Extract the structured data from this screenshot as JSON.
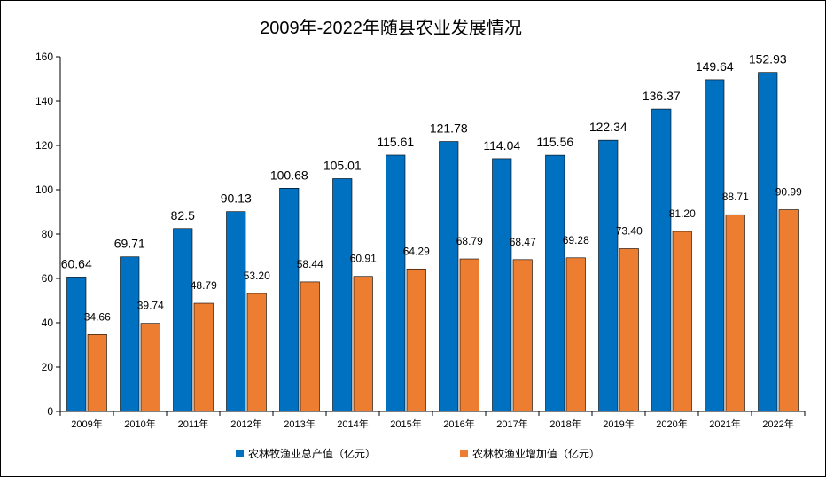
{
  "chart_data": {
    "type": "bar",
    "title": "2009年-2022年随县农业发展情况",
    "categories": [
      "2009年",
      "2010年",
      "2011年",
      "2012年",
      "2013年",
      "2014年",
      "2015年",
      "2016年",
      "2017年",
      "2018年",
      "2019年",
      "2020年",
      "2021年",
      "2022年"
    ],
    "series": [
      {
        "name": "农林牧渔业总产值（亿元）",
        "color": "#0070C0",
        "values": [
          60.64,
          69.71,
          82.5,
          90.13,
          100.68,
          105.01,
          115.61,
          121.78,
          114.04,
          115.56,
          122.34,
          136.37,
          149.64,
          152.93
        ],
        "labels": [
          "60.64",
          "69.71",
          "82.5",
          "90.13",
          "100.68",
          "105.01",
          "115.61",
          "121.78",
          "114.04",
          "115.56",
          "122.34",
          "136.37",
          "149.64",
          "152.93"
        ]
      },
      {
        "name": "农林牧渔业增加值（亿元）",
        "color": "#ED7D31",
        "values": [
          34.66,
          39.74,
          48.79,
          53.2,
          58.44,
          60.91,
          64.29,
          68.79,
          68.47,
          69.28,
          73.4,
          81.2,
          88.71,
          90.99
        ],
        "labels": [
          "34.66",
          "39.74",
          "48.79",
          "53.20",
          "58.44",
          "60.91",
          "64.29",
          "68.79",
          "68.47",
          "69.28",
          "73.40",
          "81.20",
          "88.71",
          "90.99"
        ]
      }
    ],
    "ylim": [
      0,
      160
    ],
    "yticks": [
      0,
      20,
      40,
      60,
      80,
      100,
      120,
      140,
      160
    ],
    "grid": false,
    "legend": "bottom"
  }
}
